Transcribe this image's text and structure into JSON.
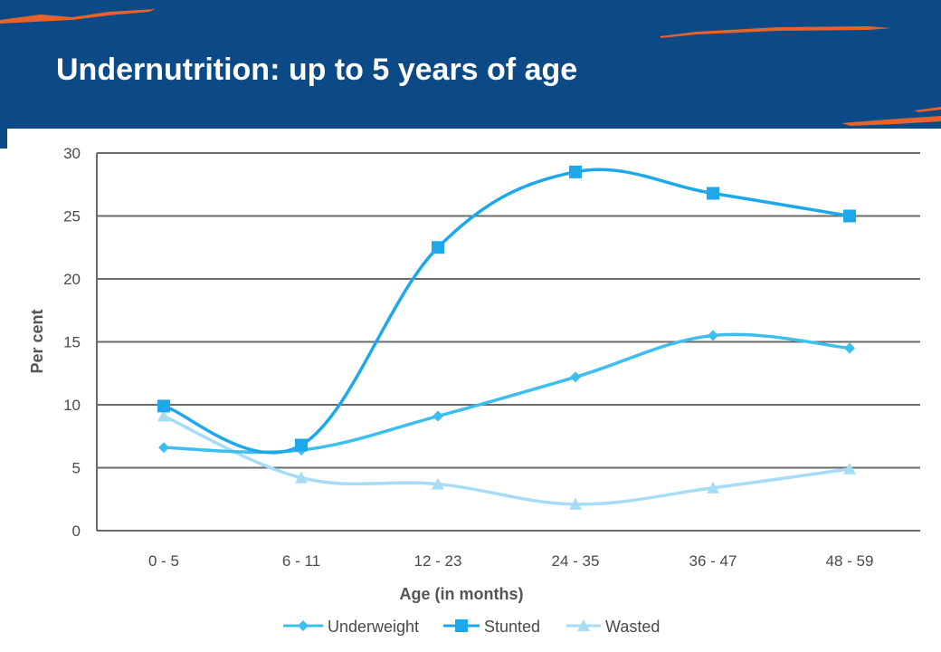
{
  "slide": {
    "title": "Undernutrition: up to 5 years of age"
  },
  "colors": {
    "header_bg": "#0c4a87",
    "accent_orange": "#e8632b",
    "underweight": "#3cbfee",
    "stunted": "#1ea8ec",
    "wasted": "#a6dcf6",
    "grid": "#6b6b6b"
  },
  "chart_data": {
    "type": "line",
    "title": "",
    "xlabel": "Age (in months)",
    "ylabel": "Per cent",
    "ylim": [
      0,
      30
    ],
    "yticks": [
      0,
      5,
      10,
      15,
      20,
      25,
      30
    ],
    "grid": true,
    "legend_position": "bottom",
    "categories": [
      "0 - 5",
      "6 - 11",
      "12 - 23",
      "24 - 35",
      "36 - 47",
      "48 - 59"
    ],
    "series": [
      {
        "name": "Underweight",
        "marker": "diamond",
        "values": [
          6.6,
          6.4,
          9.1,
          12.2,
          15.5,
          14.5
        ]
      },
      {
        "name": "Stunted",
        "marker": "square",
        "values": [
          9.9,
          6.8,
          22.5,
          28.5,
          26.8,
          25.0
        ]
      },
      {
        "name": "Wasted",
        "marker": "triangle",
        "values": [
          9.1,
          4.2,
          3.7,
          2.1,
          3.4,
          4.9
        ]
      }
    ]
  }
}
